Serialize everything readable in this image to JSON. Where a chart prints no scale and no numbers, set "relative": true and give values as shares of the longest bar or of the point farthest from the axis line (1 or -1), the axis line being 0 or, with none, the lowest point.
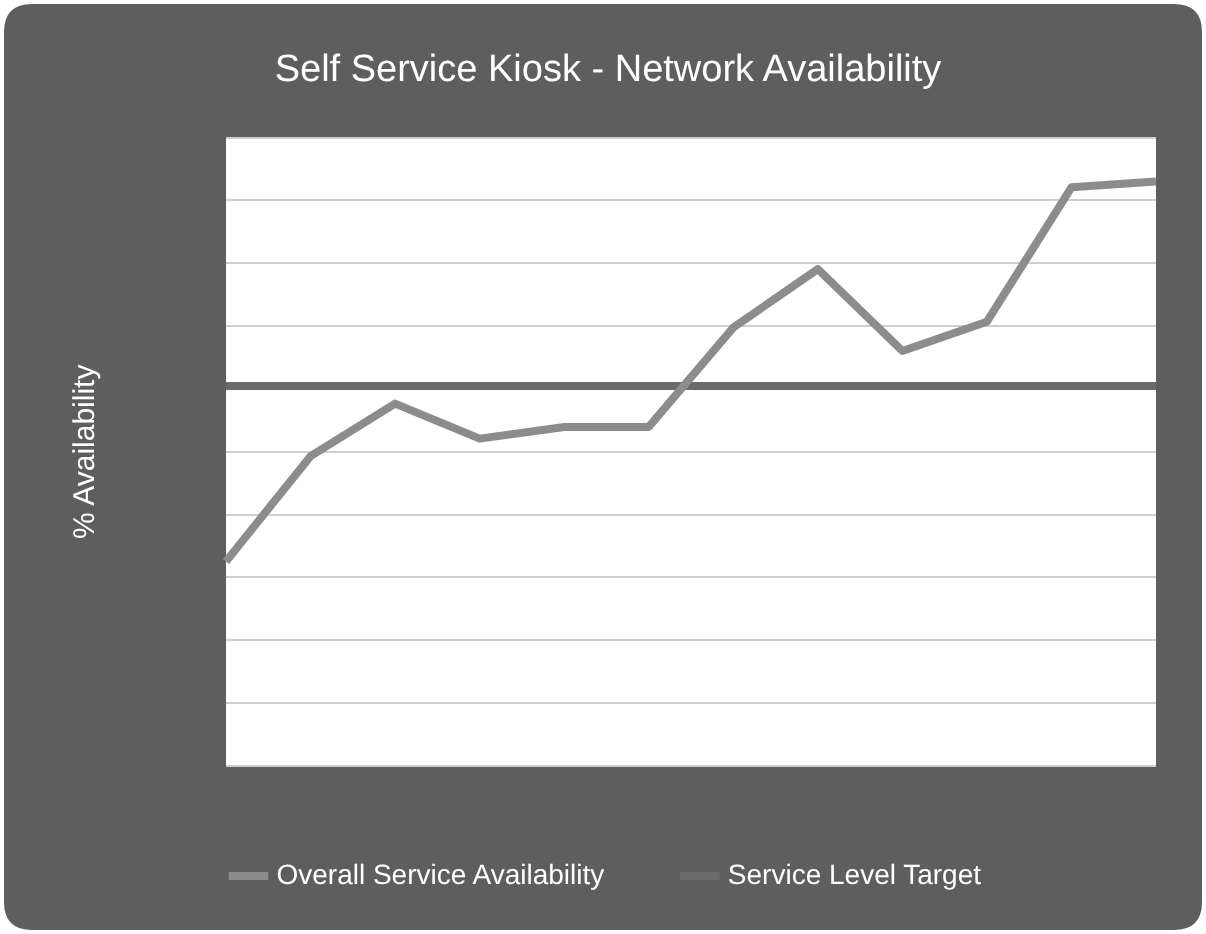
{
  "chart_data": {
    "type": "line",
    "title": "Self Service Kiosk - Network Availability",
    "ylabel": "% Availability",
    "relative": true,
    "categories": [
      null,
      null,
      null,
      null,
      null,
      null,
      null,
      null,
      null,
      null,
      null,
      null
    ],
    "series": [
      {
        "name": "Overall Service Availability",
        "color": "#8c8c8c",
        "values": [
          0.35,
          0.53,
          0.62,
          0.56,
          0.58,
          0.58,
          0.75,
          0.85,
          0.71,
          0.76,
          0.99,
          1
        ]
      },
      {
        "name": "Service Level Target",
        "color": "#6b6b6b",
        "values": [
          0.65,
          0.65,
          0.65,
          0.65,
          0.65,
          0.65,
          0.65,
          0.65,
          0.65,
          0.65,
          0.65,
          0.65
        ]
      }
    ],
    "grid": "y",
    "legend": "bottom",
    "marker": "none",
    "line_style": "solid"
  }
}
